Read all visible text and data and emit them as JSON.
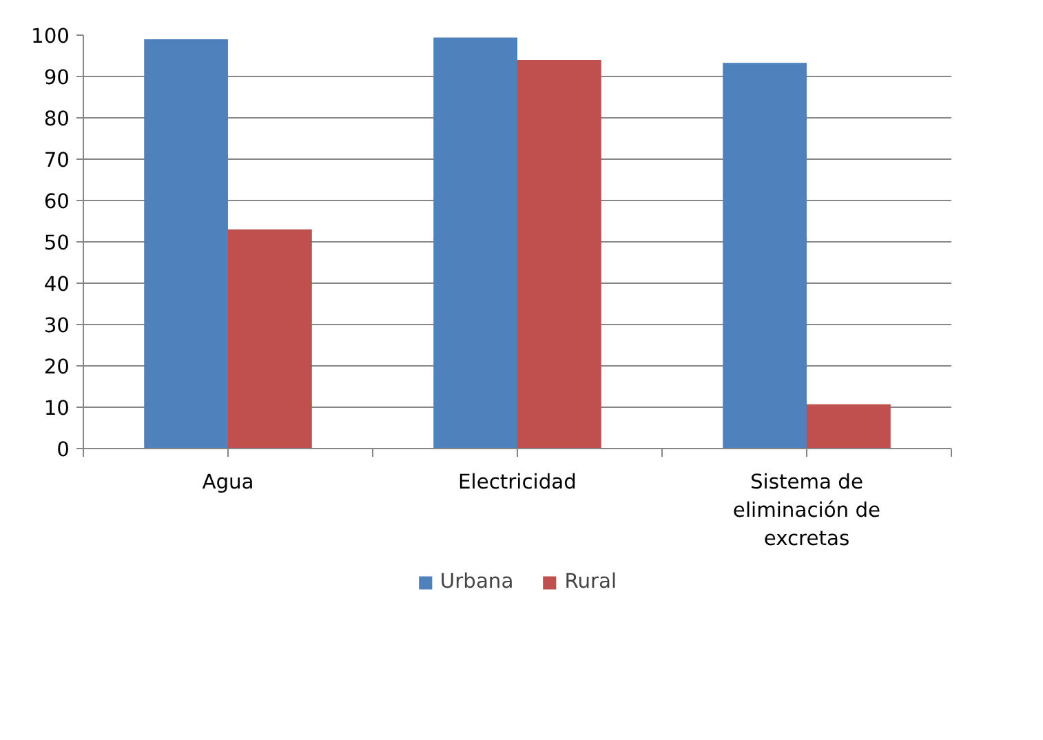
{
  "chart_data": {
    "type": "bar",
    "categories": [
      "Agua",
      "Electricidad",
      "Sistema de eliminación de excretas"
    ],
    "series": [
      {
        "name": "Urbana",
        "color": "#4f81bd",
        "values": [
          99.0,
          99.4,
          93.3
        ]
      },
      {
        "name": "Rural",
        "color": "#c0504d",
        "values": [
          53.0,
          94.0,
          10.7
        ]
      }
    ],
    "ylim": [
      0,
      100
    ],
    "yticks": [
      0,
      10,
      20,
      30,
      40,
      50,
      60,
      70,
      80,
      90,
      100
    ],
    "grid": "y",
    "legend": "bottom"
  }
}
